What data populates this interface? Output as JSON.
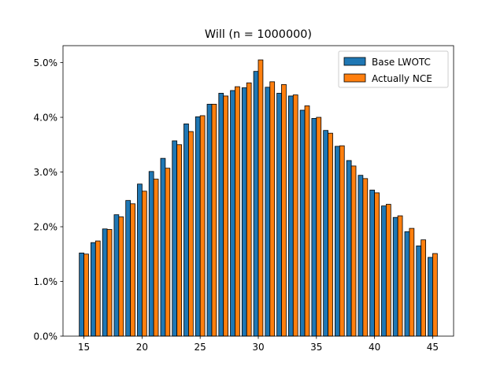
{
  "chart_data": {
    "type": "bar",
    "title": "Will (n = 1000000)",
    "xlabel": "",
    "ylabel": "",
    "x": [
      15,
      16,
      17,
      18,
      19,
      20,
      21,
      22,
      23,
      24,
      25,
      26,
      27,
      28,
      29,
      30,
      31,
      32,
      33,
      34,
      35,
      36,
      37,
      38,
      39,
      40,
      41,
      42,
      43,
      44,
      45
    ],
    "x_ticks": [
      15,
      20,
      25,
      30,
      35,
      40,
      45
    ],
    "xlim": [
      13.2,
      46.8
    ],
    "y_ticks": [
      0.0,
      1.0,
      2.0,
      3.0,
      4.0,
      5.0
    ],
    "y_tick_suffix": "%",
    "ylim": [
      0,
      5.31
    ],
    "legend_position": "top-right",
    "series": [
      {
        "name": "Base LWOTC",
        "color": "#1f77b4",
        "values": [
          1.52,
          1.71,
          1.96,
          2.22,
          2.48,
          2.78,
          3.01,
          3.25,
          3.57,
          3.88,
          4.01,
          4.24,
          4.44,
          4.49,
          4.54,
          4.84,
          4.55,
          4.44,
          4.39,
          4.13,
          3.98,
          3.76,
          3.47,
          3.21,
          2.94,
          2.67,
          2.38,
          2.17,
          1.91,
          1.65,
          1.44
        ]
      },
      {
        "name": "Actually NCE",
        "color": "#ff7f0e",
        "values": [
          1.5,
          1.74,
          1.95,
          2.18,
          2.42,
          2.65,
          2.87,
          3.07,
          3.5,
          3.74,
          4.03,
          4.24,
          4.39,
          4.56,
          4.63,
          5.05,
          4.65,
          4.6,
          4.41,
          4.21,
          4.0,
          3.71,
          3.48,
          3.11,
          2.88,
          2.62,
          2.41,
          2.2,
          1.97,
          1.76,
          1.51
        ]
      }
    ]
  }
}
